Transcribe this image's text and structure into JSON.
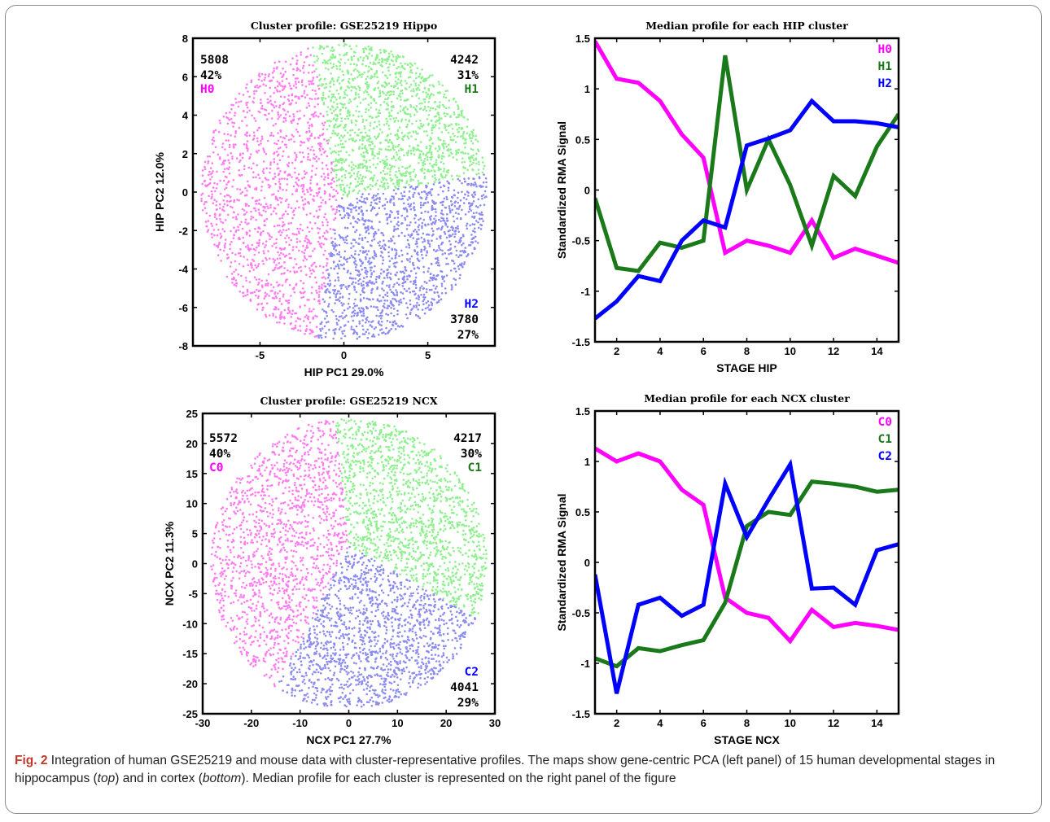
{
  "figure": {
    "caption": {
      "label": "Fig. 2",
      "part1": " Integration of human GSE25219 and mouse data with cluster-representative profiles. The maps show gene-centric PCA (left panel) of 15 human developmental stages in hippocampus (",
      "top": "top",
      "part2": ") and in cortex (",
      "bottom": "bottom",
      "part3": "). Median profile for each cluster is represented on the right panel of the figure"
    }
  },
  "colors": {
    "magenta": "#ff00ff",
    "green": "#1a7a1a",
    "blue": "#0000ff",
    "pink_pts": "#ff7cf0",
    "green_pts": "#8ef08e",
    "blue_pts": "#8c8cf0"
  },
  "chart_data": [
    {
      "type": "scatter",
      "title": "Cluster profile: GSE25219 Hippo",
      "xlabel": "HIP PC1 29.0%",
      "ylabel": "HIP PC2 12.0%",
      "xlim": [
        -9,
        9
      ],
      "ylim": [
        -8,
        8
      ],
      "xticks": [
        -5,
        0,
        5
      ],
      "yticks": [
        -8,
        -6,
        -4,
        -2,
        0,
        2,
        4,
        6,
        8
      ],
      "clusters": [
        {
          "name": "H0",
          "count": "5808",
          "percent": "42%",
          "color": "magenta"
        },
        {
          "name": "H1",
          "count": "4242",
          "percent": "31%",
          "color": "green"
        },
        {
          "name": "H2",
          "count": "3780",
          "percent": "27%",
          "color": "blue"
        }
      ],
      "boundaries": {
        "top": [
          -2,
          8
        ],
        "right": [
          9,
          1
        ],
        "bottom": [
          -1.7,
          -8
        ],
        "center": [
          -0.3,
          -0.3
        ]
      }
    },
    {
      "type": "line",
      "title": "Median profile for each HIP cluster",
      "xlabel": "STAGE  HIP",
      "ylabel": "Standardized RMA Signal",
      "xlim": [
        1,
        15
      ],
      "ylim": [
        -1.5,
        1.5
      ],
      "xticks": [
        2,
        4,
        6,
        8,
        10,
        12,
        14
      ],
      "yticks": [
        -1.5,
        -1,
        -0.5,
        0,
        0.5,
        1,
        1.5
      ],
      "x": [
        1,
        2,
        3,
        4,
        5,
        6,
        7,
        8,
        9,
        10,
        11,
        12,
        13,
        14,
        15
      ],
      "series": [
        {
          "name": "H0",
          "color": "magenta",
          "values": [
            1.47,
            1.1,
            1.06,
            0.88,
            0.55,
            0.32,
            -0.62,
            -0.5,
            -0.55,
            -0.62,
            -0.3,
            -0.67,
            -0.58,
            -0.65,
            -0.72
          ]
        },
        {
          "name": "H1",
          "color": "green",
          "values": [
            -0.08,
            -0.77,
            -0.8,
            -0.52,
            -0.57,
            -0.5,
            1.33,
            0.0,
            0.5,
            0.05,
            -0.55,
            0.14,
            -0.06,
            0.43,
            0.75
          ]
        },
        {
          "name": "H2",
          "color": "blue",
          "values": [
            -1.27,
            -1.1,
            -0.85,
            -0.9,
            -0.5,
            -0.3,
            -0.37,
            0.44,
            0.51,
            0.59,
            0.88,
            0.68,
            0.68,
            0.66,
            0.62
          ]
        }
      ]
    },
    {
      "type": "scatter",
      "title": "Cluster profile: GSE25219 NCX",
      "xlabel": "NCX PC1 27.7%",
      "ylabel": "NCX PC2 11.3%",
      "xlim": [
        -30,
        30
      ],
      "ylim": [
        -25,
        25
      ],
      "xticks": [
        -30,
        -20,
        -10,
        0,
        10,
        20,
        30
      ],
      "yticks": [
        -25,
        -20,
        -15,
        -10,
        -5,
        0,
        5,
        10,
        15,
        20,
        25
      ],
      "clusters": [
        {
          "name": "C0",
          "count": "5572",
          "percent": "40%",
          "color": "magenta"
        },
        {
          "name": "C1",
          "count": "4217",
          "percent": "30%",
          "color": "green"
        },
        {
          "name": "C2",
          "count": "4041",
          "percent": "29%",
          "color": "blue"
        }
      ],
      "boundaries": {
        "top": [
          -3,
          25
        ],
        "right": [
          28,
          -10
        ],
        "bottom": [
          -12,
          -16
        ],
        "center": [
          0,
          3
        ]
      }
    },
    {
      "type": "line",
      "title": "Median profile for each NCX cluster",
      "xlabel": "STAGE  NCX",
      "ylabel": "Standardized RMA Signal",
      "xlim": [
        1,
        15
      ],
      "ylim": [
        -1.5,
        1.5
      ],
      "xticks": [
        2,
        4,
        6,
        8,
        10,
        12,
        14
      ],
      "yticks": [
        -1.5,
        -1,
        -0.5,
        0,
        0.5,
        1,
        1.5
      ],
      "x": [
        1,
        2,
        3,
        4,
        5,
        6,
        7,
        8,
        9,
        10,
        11,
        12,
        13,
        14,
        15
      ],
      "series": [
        {
          "name": "C0",
          "color": "magenta",
          "values": [
            1.13,
            1.0,
            1.08,
            1.0,
            0.72,
            0.57,
            -0.35,
            -0.5,
            -0.55,
            -0.78,
            -0.47,
            -0.64,
            -0.6,
            -0.63,
            -0.67
          ]
        },
        {
          "name": "C1",
          "color": "green",
          "values": [
            -0.95,
            -1.03,
            -0.85,
            -0.88,
            -0.82,
            -0.77,
            -0.4,
            0.36,
            0.5,
            0.47,
            0.8,
            0.78,
            0.75,
            0.7,
            0.72
          ]
        },
        {
          "name": "C2",
          "color": "blue",
          "values": [
            -0.12,
            -1.3,
            -0.42,
            -0.35,
            -0.53,
            -0.42,
            0.78,
            0.25,
            0.62,
            0.97,
            -0.26,
            -0.25,
            -0.42,
            0.12,
            0.18
          ]
        }
      ]
    }
  ]
}
